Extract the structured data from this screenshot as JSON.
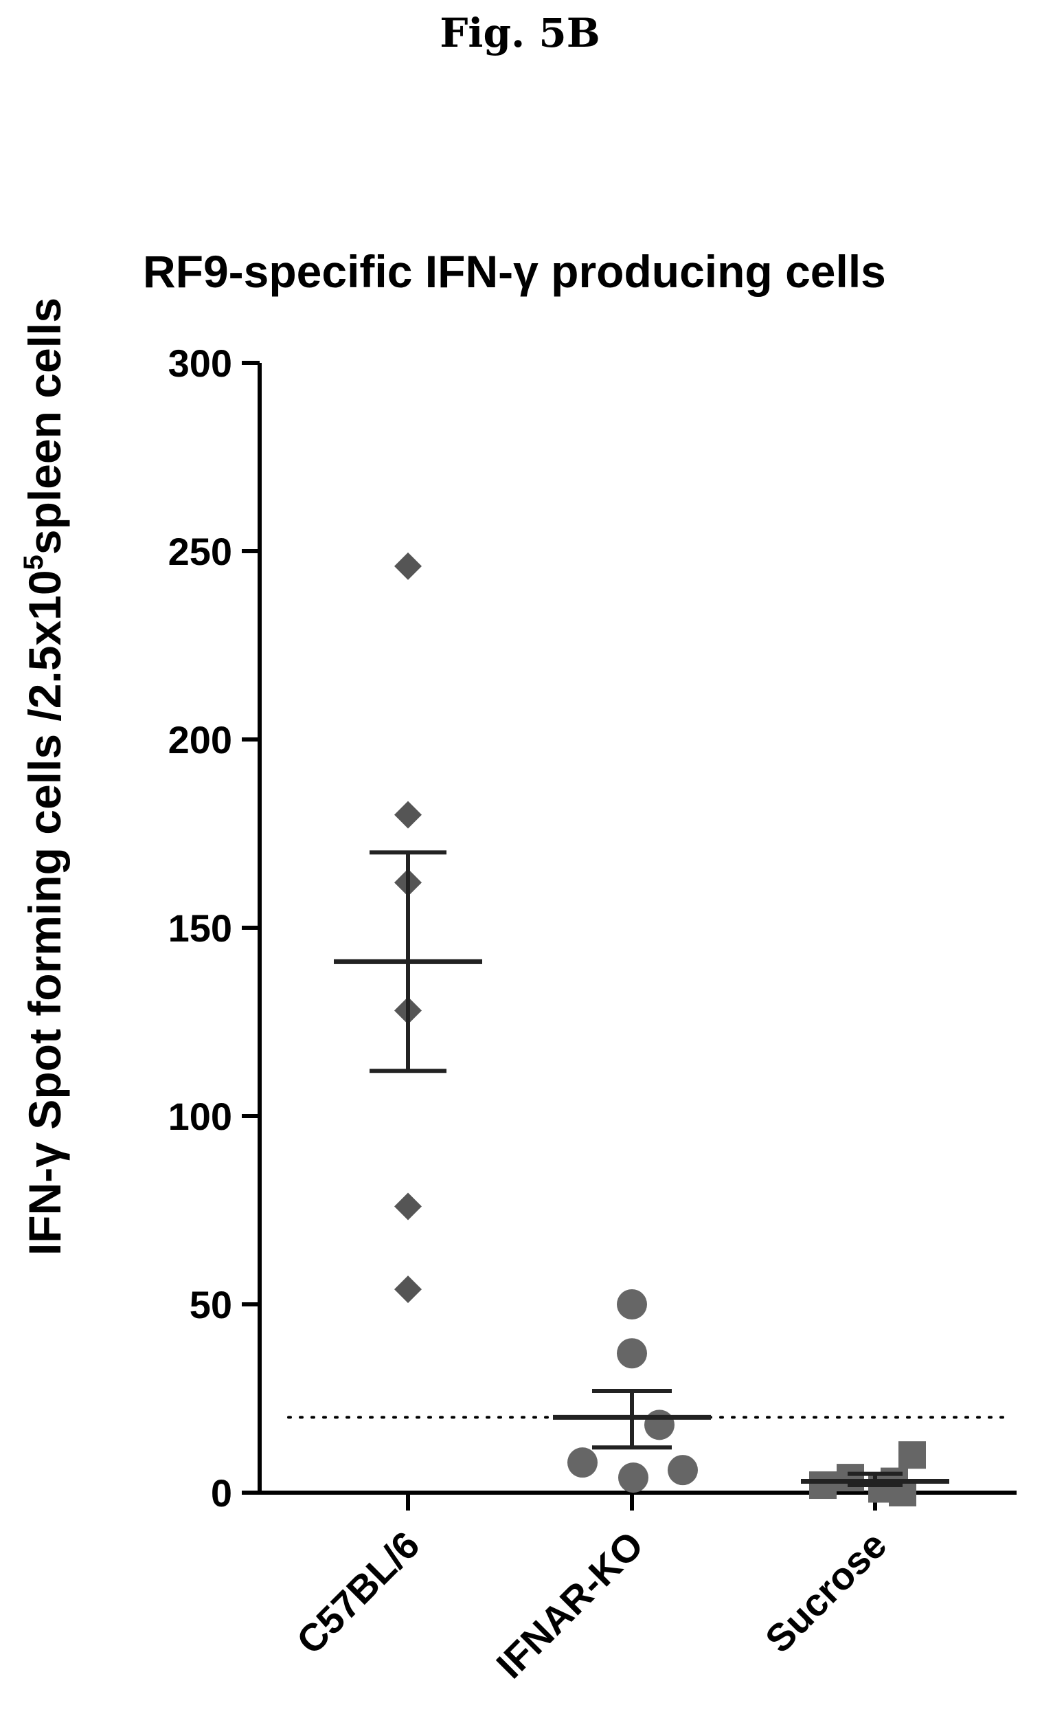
{
  "figure_label": "Fig. 5B",
  "chart_data": {
    "type": "scatter",
    "title": "RF9-specific IFN-γ producing cells",
    "ylabel": {
      "main": "IFN-γ Spot forming cells /2.5x10",
      "superscript": "5",
      "tail": "spleen cells"
    },
    "xlabel": "",
    "ylim": [
      0,
      300
    ],
    "yticks": [
      0,
      50,
      100,
      150,
      200,
      250,
      300
    ],
    "ytick_labels": [
      "0",
      "50",
      "100",
      "150",
      "200",
      "250",
      "300"
    ],
    "categories": [
      "C57BL/6",
      "IFNAR-KO",
      "Sucrose"
    ],
    "threshold_line": 20,
    "groups": [
      {
        "category": "C57BL/6",
        "marker": "diamond",
        "color": "#555555",
        "values": [
          246,
          180,
          162,
          128,
          76,
          54
        ],
        "mean": 141,
        "sem": [
          112,
          170
        ]
      },
      {
        "category": "IFNAR-KO",
        "marker": "circle",
        "color": "#666666",
        "values": [
          50,
          37,
          18,
          8,
          6,
          4
        ],
        "mean": 20,
        "sem": [
          12,
          27
        ]
      },
      {
        "category": "Sucrose",
        "marker": "square",
        "color": "#666666",
        "values": [
          10,
          4,
          3,
          2,
          1,
          0
        ],
        "mean": 3,
        "sem": [
          2,
          5
        ]
      }
    ]
  }
}
